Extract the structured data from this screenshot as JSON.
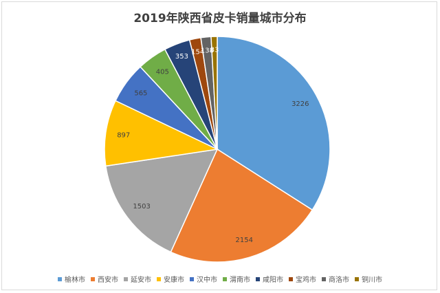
{
  "chart_data": {
    "type": "pie",
    "title": "2019年陕西省皮卡销量城市分布",
    "categories": [
      "榆林市",
      "西安市",
      "延安市",
      "安康市",
      "汉中市",
      "渭南市",
      "咸阳市",
      "宝鸡市",
      "商洛市",
      "铜川市"
    ],
    "values": [
      3226,
      2154,
      1503,
      897,
      565,
      405,
      353,
      154,
      138,
      83
    ],
    "colors": [
      "#5b9bd5",
      "#ed7d31",
      "#a5a5a5",
      "#ffc000",
      "#4472c4",
      "#70ad47",
      "#264478",
      "#9e480e",
      "#636363",
      "#997300"
    ],
    "legend_position": "bottom",
    "start_angle": "12 o'clock",
    "direction": "clockwise"
  }
}
